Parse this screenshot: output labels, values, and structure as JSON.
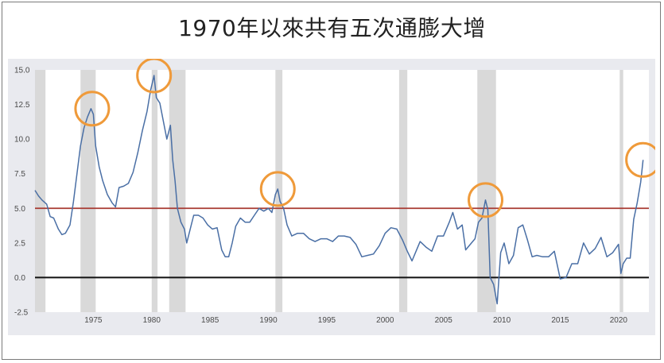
{
  "title": "1970年以來共有五次通膨大增",
  "colors": {
    "series": "#4a6fa5",
    "recession": "#d9d9d9",
    "threshold_line": "#a83a32",
    "zero_line": "#111111",
    "highlight_circle": "#ef9a3a",
    "plot_bg": "#ffffff",
    "chart_bg": "#e9eaef"
  },
  "chart_data": {
    "type": "line",
    "title": "1970年以來共有五次通膨大增",
    "xlabel": "",
    "ylabel": "",
    "xlim": [
      1970.0,
      2022.6
    ],
    "ylim": [
      -2.5,
      15.0
    ],
    "x_ticks": [
      1975,
      1980,
      1985,
      1990,
      1995,
      2000,
      2005,
      2010,
      2015,
      2020
    ],
    "y_ticks": [
      -2.5,
      0.0,
      2.5,
      5.0,
      7.5,
      10.0,
      12.5,
      15.0
    ],
    "x_tick_labels": [
      "1975",
      "1980",
      "1985",
      "1990",
      "1995",
      "2000",
      "2005",
      "2010",
      "2015",
      "2020"
    ],
    "y_tick_labels": [
      "-2.5",
      "0.0",
      "2.5",
      "5.0",
      "7.5",
      "10.0",
      "12.5",
      "15.0"
    ],
    "grid": false,
    "recessions": [
      [
        1970.0,
        1970.9
      ],
      [
        1973.9,
        1975.2
      ],
      [
        1980.0,
        1980.5
      ],
      [
        1981.5,
        1982.9
      ],
      [
        1990.6,
        1991.2
      ],
      [
        2001.2,
        2001.9
      ],
      [
        2007.9,
        2009.5
      ],
      [
        2020.1,
        2020.4
      ]
    ],
    "horizontal_lines": [
      {
        "y": 5.0,
        "color": "#a83a32"
      },
      {
        "y": 0.0,
        "color": "#111111"
      }
    ],
    "highlighted_peaks": [
      {
        "x": 1974.9,
        "y": 12.2
      },
      {
        "x": 1980.2,
        "y": 14.6
      },
      {
        "x": 1990.8,
        "y": 6.4
      },
      {
        "x": 2008.6,
        "y": 5.6
      },
      {
        "x": 2022.1,
        "y": 8.5
      }
    ],
    "series": [
      {
        "name": "",
        "x": [
          1970.0,
          1970.3,
          1970.6,
          1971.0,
          1971.3,
          1971.6,
          1972.0,
          1972.3,
          1972.6,
          1973.0,
          1973.3,
          1973.6,
          1973.9,
          1974.2,
          1974.5,
          1974.8,
          1975.0,
          1975.2,
          1975.5,
          1975.8,
          1976.2,
          1976.6,
          1976.9,
          1977.2,
          1977.6,
          1978.0,
          1978.4,
          1978.8,
          1979.2,
          1979.6,
          1979.9,
          1980.2,
          1980.4,
          1980.7,
          1981.0,
          1981.3,
          1981.6,
          1981.8,
          1982.0,
          1982.2,
          1982.5,
          1982.8,
          1983.0,
          1983.3,
          1983.6,
          1984.0,
          1984.4,
          1984.8,
          1985.2,
          1985.6,
          1986.0,
          1986.3,
          1986.6,
          1986.9,
          1987.2,
          1987.6,
          1988.0,
          1988.4,
          1988.8,
          1989.2,
          1989.6,
          1990.0,
          1990.3,
          1990.6,
          1990.8,
          1991.0,
          1991.3,
          1991.6,
          1992.0,
          1992.5,
          1993.0,
          1993.5,
          1994.0,
          1994.5,
          1995.0,
          1995.5,
          1996.0,
          1996.5,
          1997.0,
          1997.5,
          1998.0,
          1998.5,
          1999.0,
          1999.5,
          2000.0,
          2000.5,
          2001.0,
          2001.5,
          2001.9,
          2002.3,
          2002.7,
          2003.0,
          2003.5,
          2004.0,
          2004.5,
          2005.0,
          2005.5,
          2005.8,
          2006.2,
          2006.6,
          2006.9,
          2007.3,
          2007.7,
          2008.0,
          2008.3,
          2008.6,
          2008.8,
          2009.0,
          2009.3,
          2009.6,
          2009.9,
          2010.2,
          2010.6,
          2011.0,
          2011.4,
          2011.8,
          2012.2,
          2012.6,
          2013.0,
          2013.5,
          2014.0,
          2014.5,
          2015.0,
          2015.5,
          2016.0,
          2016.5,
          2017.0,
          2017.5,
          2018.0,
          2018.5,
          2019.0,
          2019.5,
          2020.0,
          2020.2,
          2020.4,
          2020.7,
          2021.0,
          2021.3,
          2021.6,
          2021.9,
          2022.1
        ],
        "values": [
          6.3,
          5.9,
          5.6,
          5.3,
          4.4,
          4.3,
          3.5,
          3.1,
          3.2,
          3.8,
          5.5,
          7.5,
          9.5,
          10.8,
          11.6,
          12.2,
          11.8,
          9.5,
          8.0,
          7.0,
          6.0,
          5.4,
          5.1,
          6.5,
          6.6,
          6.8,
          7.6,
          9.0,
          10.6,
          12.0,
          13.5,
          14.6,
          13.0,
          12.6,
          11.3,
          10.0,
          11.0,
          8.5,
          7.0,
          5.0,
          4.0,
          3.5,
          2.5,
          3.5,
          4.5,
          4.5,
          4.3,
          3.8,
          3.5,
          3.6,
          2.0,
          1.5,
          1.5,
          2.5,
          3.7,
          4.3,
          4.0,
          4.0,
          4.5,
          5.0,
          4.8,
          5.0,
          4.7,
          6.0,
          6.4,
          5.5,
          5.0,
          3.8,
          3.0,
          3.2,
          3.2,
          2.8,
          2.6,
          2.8,
          2.8,
          2.6,
          3.0,
          3.0,
          2.9,
          2.4,
          1.5,
          1.6,
          1.7,
          2.3,
          3.2,
          3.6,
          3.5,
          2.7,
          1.9,
          1.2,
          2.0,
          2.6,
          2.2,
          1.9,
          3.0,
          3.0,
          4.0,
          4.7,
          3.5,
          3.8,
          2.0,
          2.4,
          2.8,
          4.0,
          4.3,
          5.6,
          4.9,
          0.0,
          -0.5,
          -1.9,
          1.8,
          2.5,
          1.0,
          1.6,
          3.6,
          3.8,
          2.7,
          1.5,
          1.6,
          1.5,
          1.5,
          1.9,
          -0.1,
          0.0,
          1.0,
          1.0,
          2.5,
          1.7,
          2.1,
          2.9,
          1.5,
          1.8,
          2.4,
          0.3,
          1.0,
          1.4,
          1.4,
          4.2,
          5.4,
          6.9,
          8.5
        ]
      }
    ]
  }
}
